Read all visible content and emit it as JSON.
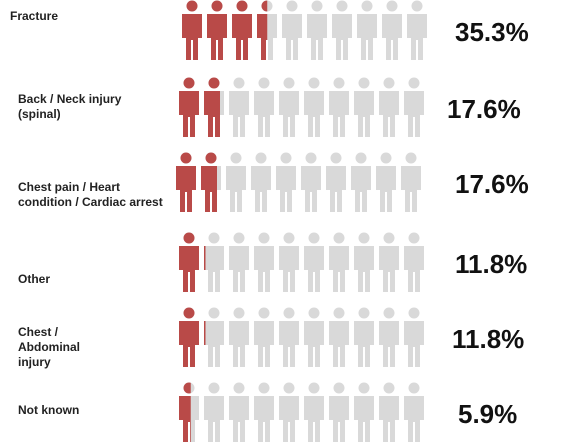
{
  "chart_data": {
    "type": "pictogram",
    "categories": [
      "Fracture",
      "Back / Neck injury (spinal)",
      "Chest pain / Heart condition / Cardiac arrest",
      "Other",
      "Chest / Abdominal injury",
      "Not known"
    ],
    "values": [
      35.3,
      17.6,
      17.6,
      11.8,
      11.8,
      5.9
    ],
    "value_labels": [
      "35.3%",
      "17.6%",
      "17.6%",
      "11.8%",
      "11.8%",
      "5.9%"
    ],
    "color": "#b94a48",
    "empty_color": "#d9d9d9"
  }
}
